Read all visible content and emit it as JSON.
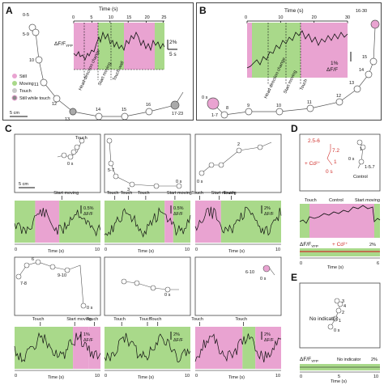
{
  "panel_labels": {
    "a": "A",
    "b": "B",
    "c": "C",
    "d": "D",
    "e": "E"
  },
  "colors": {
    "still": "#e9a3d1",
    "moving": "#a9d98a",
    "touch": "#c8c8c8",
    "cd": "#d0312d",
    "trace": "#111111",
    "path": "#555555"
  },
  "legend": {
    "still": "Still",
    "moving": "Moving",
    "touch": "Touch",
    "still_touch": "Still while touch",
    "scale": "5 cm"
  },
  "panel_a": {
    "time_axis_label": "Time (s)",
    "ticks": [
      "0",
      "5",
      "10",
      "15",
      "20",
      "25"
    ],
    "ylabel": "ΔF/F",
    "ylabel_sub": "YFP",
    "scale_pct": "2%",
    "scale_time": "5 s",
    "annotations": [
      "Head direction change",
      "Start moving",
      "Touch wall"
    ],
    "path_labels": [
      "0-5",
      "5-9",
      "10",
      "11",
      "12",
      "13",
      "14",
      "15",
      "16",
      "17-23"
    ]
  },
  "panel_b": {
    "time_axis_label": "Time (s)",
    "ticks": [
      "0",
      "10",
      "20",
      "30"
    ],
    "ticks_extra": "16-30",
    "scale_pct": "1%",
    "scale_label": "ΔF/F",
    "annotations": [
      "Head direction change",
      "Start moving",
      "Touch"
    ],
    "path_labels": [
      "0 s",
      "1-7",
      "8",
      "9",
      "10",
      "11",
      "12",
      "13",
      "14",
      "15"
    ]
  },
  "panel_c": {
    "scale": "5 cm",
    "time_label": "Time (s)",
    "tick0": "0",
    "tick10": "10",
    "row1": [
      {
        "events": [
          "Start moving"
        ],
        "scale": "0.5%",
        "scale2": "ΔF/F",
        "path": [
          "Touch",
          "4",
          "3",
          "5",
          "2",
          "1",
          "0 s"
        ]
      },
      {
        "events": [
          "Touch",
          "Touch",
          "Touch",
          "Start moving"
        ],
        "scale": "0.5%",
        "scale2": "ΔF/F",
        "path": [
          "5-7",
          "2",
          "3",
          "1",
          "0 s"
        ]
      },
      {
        "events": [
          "Touch",
          "Start moving",
          "Touch"
        ],
        "scale": "2%",
        "scale2": "ΔF/F",
        "path": [
          "2",
          "3",
          "1",
          "0 s"
        ]
      }
    ],
    "row2": [
      {
        "events": [
          "Touch",
          "Start moving",
          "Touch"
        ],
        "scale": "1%",
        "scale2": "ΔF/F",
        "path": [
          "6",
          "5",
          "4",
          "3",
          "2",
          "7-8",
          "9-10",
          "1",
          "0 s"
        ]
      },
      {
        "events": [
          "Touch",
          "Touch",
          "Touch"
        ],
        "scale": "2%",
        "scale2": "ΔF/F",
        "path": [
          "5",
          "4",
          "3",
          "2",
          "1",
          "0 s"
        ]
      },
      {
        "events": [
          "Touch",
          "Touch"
        ],
        "scale": "2%",
        "scale2": "ΔF/F",
        "path": [
          "6-10",
          "1",
          "2-4",
          "5",
          "0 s"
        ]
      }
    ]
  },
  "panel_d": {
    "labels": [
      "2.5-6",
      "7.2",
      "1",
      "0 s",
      "+ Cd²⁺",
      "0 s",
      "1",
      "1-5.7",
      "Control"
    ],
    "events": [
      "Touch",
      "Control",
      "Start moving"
    ],
    "ylabel": "ΔF/F",
    "ylabel_sub": "YFP",
    "cd_label": "+ Cd²⁺",
    "scale_pct": "2%",
    "time_label": "Time (s)",
    "tick0": "0",
    "tick6": "6"
  },
  "panel_e": {
    "no_indicator": "No indicator",
    "path": [
      "3",
      "4",
      "2",
      "1",
      "0 s"
    ],
    "ylabel": "ΔF/F",
    "ylabel_sub": "YFP",
    "trace_label": "No indicator",
    "scale_pct": "2%",
    "time_label": "Time (s)",
    "ticks": [
      "0",
      "5",
      "10"
    ]
  }
}
